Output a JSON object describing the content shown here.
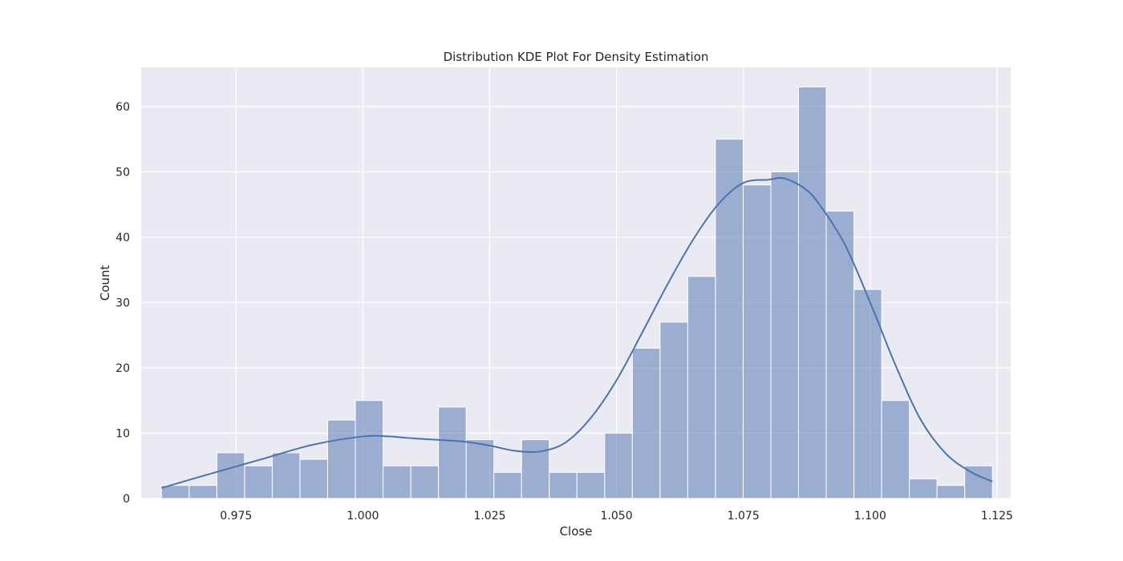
{
  "chart_data": {
    "type": "bar",
    "subtype": "histogram-with-kde",
    "title": "Distribution KDE Plot For Density Estimation",
    "xlabel": "Close",
    "ylabel": "Count",
    "xlim": [
      0.9563,
      1.1277
    ],
    "ylim": [
      0,
      66
    ],
    "xticks": [
      "0.975",
      "1.000",
      "1.025",
      "1.050",
      "1.075",
      "1.100",
      "1.125"
    ],
    "xtick_values": [
      0.975,
      1.0,
      1.025,
      1.05,
      1.075,
      1.1,
      1.125
    ],
    "yticks": [
      "0",
      "10",
      "20",
      "30",
      "40",
      "50",
      "60"
    ],
    "ytick_values": [
      0,
      10,
      20,
      30,
      40,
      50,
      60
    ],
    "bin_start": 0.9603,
    "bin_width": 0.00546,
    "counts": [
      2,
      2,
      7,
      5,
      7,
      6,
      12,
      15,
      5,
      5,
      14,
      9,
      4,
      9,
      4,
      4,
      10,
      23,
      27,
      34,
      55,
      48,
      50,
      63,
      44,
      32,
      15,
      3,
      2,
      5
    ],
    "kde": {
      "x": [
        0.9603,
        0.97,
        0.98,
        0.99,
        1.0,
        1.005,
        1.01,
        1.02,
        1.025,
        1.03,
        1.035,
        1.04,
        1.045,
        1.05,
        1.055,
        1.06,
        1.065,
        1.07,
        1.075,
        1.08,
        1.083,
        1.087,
        1.09,
        1.095,
        1.1,
        1.105,
        1.11,
        1.115,
        1.12,
        1.1241
      ],
      "y": [
        1.6,
        3.8,
        6.0,
        8.2,
        9.5,
        9.5,
        9.2,
        8.7,
        8.1,
        7.3,
        7.2,
        8.6,
        12.4,
        18.1,
        25.3,
        32.7,
        39.5,
        45.0,
        48.3,
        48.8,
        49.0,
        47.5,
        45.0,
        38.9,
        30.0,
        20.4,
        12.0,
        6.8,
        4.0,
        2.6
      ]
    },
    "grid": true,
    "legend": "none",
    "colors": {
      "bar_fill": "#4c72b0",
      "bar_opacity": 0.5,
      "kde_line": "#4c72b0",
      "plot_background": "#eaeaf2",
      "grid": "#ffffff"
    }
  }
}
